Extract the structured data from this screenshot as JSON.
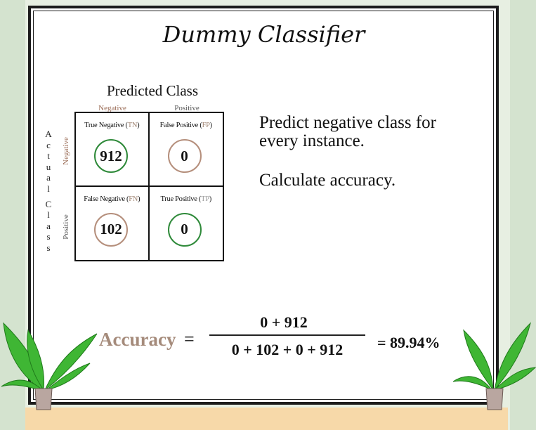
{
  "title": "Dummy Classifier",
  "matrix": {
    "predicted_label": "Predicted Class",
    "actual_label": "Actual Class",
    "col_negative": "Negative",
    "col_positive": "Positive",
    "row_negative": "Negative",
    "row_positive": "Positive",
    "cells": [
      {
        "label": "True Negative",
        "abbr": "TN",
        "value": "912"
      },
      {
        "label": "False Positive",
        "abbr": "FP",
        "value": "0"
      },
      {
        "label": "False Negative",
        "abbr": "FN",
        "value": "102"
      },
      {
        "label": "True Positive",
        "abbr": "TP",
        "value": "0"
      }
    ]
  },
  "description": {
    "line1": "Predict negative class for every instance.",
    "line2": "Calculate accuracy."
  },
  "formula": {
    "label": "Accuracy",
    "equals": "=",
    "numerator": "0 + 912",
    "denominator": "0 + 102 + 0 + 912",
    "result": "= 89.94%"
  },
  "colors": {
    "accuracy_text": "#a58b7b",
    "green_circle": "#2f8a3a",
    "brown_circle": "#b58f7c",
    "negative_label": "#9a6b55"
  }
}
